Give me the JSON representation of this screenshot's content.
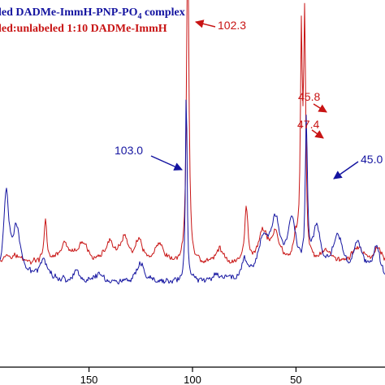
{
  "chart_data": {
    "type": "line",
    "x_reversed": true,
    "xlim": [
      193,
      7
    ],
    "xticks": [
      150,
      100,
      50
    ],
    "xtick_labels": [
      "150",
      "100",
      "50"
    ],
    "ylim": [
      0,
      1
    ],
    "legend": {
      "placement": "top-left",
      "entries": [
        {
          "text": "led DADMe-ImmH-PNP-PO",
          "subscript": "4",
          "suffix": " complex",
          "color": "#1414a0"
        },
        {
          "text": "led:unlabeled 1:10 DADMe-ImmH",
          "subscript": "",
          "suffix": "",
          "color": "#c81414"
        }
      ]
    },
    "annotations": [
      {
        "text": "102.3",
        "x": 102.3,
        "color": "#c81414"
      },
      {
        "text": "45.8",
        "x": 45.8,
        "color": "#c81414"
      },
      {
        "text": "47.4",
        "x": 47.4,
        "color": "#c81414"
      },
      {
        "text": "103.0",
        "x": 103.0,
        "color": "#1414a0"
      },
      {
        "text": "45.0",
        "x": 45.0,
        "color": "#1414a0"
      }
    ],
    "series": [
      {
        "color": "#c81414",
        "baseline": 0.29,
        "noise": 0.01,
        "peaks": [
          {
            "x": 188,
            "h": 0.03,
            "w": 6
          },
          {
            "x": 171,
            "h": 0.12,
            "w": 0.8
          },
          {
            "x": 162,
            "h": 0.05,
            "w": 3
          },
          {
            "x": 153,
            "h": 0.055,
            "w": 3
          },
          {
            "x": 140,
            "h": 0.06,
            "w": 2.5
          },
          {
            "x": 133,
            "h": 0.07,
            "w": 2.0
          },
          {
            "x": 126,
            "h": 0.06,
            "w": 2.2
          },
          {
            "x": 116,
            "h": 0.05,
            "w": 2.5
          },
          {
            "x": 102.3,
            "h": 0.98,
            "w": 0.65
          },
          {
            "x": 87,
            "h": 0.045,
            "w": 2
          },
          {
            "x": 74,
            "h": 0.16,
            "w": 0.9
          },
          {
            "x": 66,
            "h": 0.09,
            "w": 2.5
          },
          {
            "x": 60,
            "h": 0.08,
            "w": 2.5
          },
          {
            "x": 50,
            "h": 0.055,
            "w": 1.5
          },
          {
            "x": 47.4,
            "h": 0.6,
            "w": 0.55
          },
          {
            "x": 45.8,
            "h": 0.67,
            "w": 0.6
          },
          {
            "x": 35,
            "h": 0.04,
            "w": 3
          },
          {
            "x": 20,
            "h": 0.05,
            "w": 3
          },
          {
            "x": 10,
            "h": 0.045,
            "w": 2
          }
        ]
      },
      {
        "color": "#1414a0",
        "baseline": 0.24,
        "noise": 0.01,
        "peaks": [
          {
            "x": 190,
            "h": 0.24,
            "w": 1.5
          },
          {
            "x": 185,
            "h": 0.14,
            "w": 2.5
          },
          {
            "x": 172,
            "h": 0.06,
            "w": 3
          },
          {
            "x": 156,
            "h": 0.03,
            "w": 2
          },
          {
            "x": 145,
            "h": 0.025,
            "w": 2
          },
          {
            "x": 125,
            "h": 0.05,
            "w": 2
          },
          {
            "x": 103.0,
            "h": 0.57,
            "w": 0.45
          },
          {
            "x": 88,
            "h": 0.02,
            "w": 3
          },
          {
            "x": 75,
            "h": 0.055,
            "w": 1.5
          },
          {
            "x": 66,
            "h": 0.1,
            "w": 3
          },
          {
            "x": 60,
            "h": 0.15,
            "w": 3
          },
          {
            "x": 52,
            "h": 0.16,
            "w": 2.5
          },
          {
            "x": 45.0,
            "h": 0.42,
            "w": 0.6
          },
          {
            "x": 40,
            "h": 0.14,
            "w": 2.5
          },
          {
            "x": 30,
            "h": 0.12,
            "w": 3
          },
          {
            "x": 20,
            "h": 0.1,
            "w": 3
          },
          {
            "x": 11,
            "h": 0.09,
            "w": 2
          }
        ]
      }
    ]
  }
}
